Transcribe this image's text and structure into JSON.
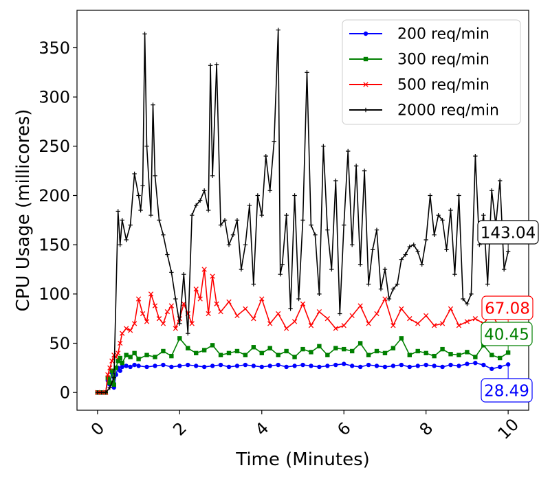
{
  "chart_data": {
    "type": "line",
    "title": "",
    "xlabel": "Time (Minutes)",
    "ylabel": "CPU Usage (millicores)",
    "xlim": [
      -0.5,
      10.5
    ],
    "ylim": [
      -18,
      388
    ],
    "xticks": [
      0,
      2,
      4,
      6,
      8,
      10
    ],
    "yticks": [
      0,
      50,
      100,
      150,
      200,
      250,
      300,
      350
    ],
    "grid": false,
    "legend_position": "top-right",
    "series": [
      {
        "name": "200 req/min",
        "color": "#0000ff",
        "marker": "circle",
        "x": [
          0,
          0.1,
          0.2,
          0.25,
          0.3,
          0.35,
          0.4,
          0.45,
          0.5,
          0.55,
          0.6,
          0.7,
          0.8,
          0.9,
          1.0,
          1.2,
          1.4,
          1.6,
          1.8,
          2.0,
          2.2,
          2.4,
          2.6,
          2.8,
          3.0,
          3.2,
          3.4,
          3.6,
          3.8,
          4.0,
          4.2,
          4.4,
          4.6,
          4.8,
          5.0,
          5.2,
          5.4,
          5.6,
          5.8,
          6.0,
          6.2,
          6.4,
          6.6,
          6.8,
          7.0,
          7.2,
          7.4,
          7.6,
          7.8,
          8.0,
          8.2,
          8.4,
          8.6,
          8.8,
          9.0,
          9.2,
          9.4,
          9.6,
          9.8,
          10.0
        ],
        "y": [
          0,
          0,
          0,
          12,
          8,
          20,
          5,
          18,
          25,
          22,
          26,
          27,
          26,
          28,
          27,
          26,
          27,
          28,
          26,
          27,
          28,
          27,
          26,
          27,
          28,
          26,
          27,
          28,
          27,
          26,
          27,
          28,
          26,
          27,
          28,
          27,
          26,
          27,
          28,
          29,
          27,
          26,
          28,
          27,
          26,
          27,
          28,
          26,
          27,
          28,
          27,
          26,
          28,
          27,
          29,
          30,
          28,
          24,
          26,
          28.49
        ]
      },
      {
        "name": "300 req/min",
        "color": "#008000",
        "marker": "square",
        "x": [
          0,
          0.1,
          0.2,
          0.25,
          0.3,
          0.35,
          0.4,
          0.45,
          0.5,
          0.55,
          0.6,
          0.7,
          0.8,
          0.9,
          1.0,
          1.2,
          1.4,
          1.6,
          1.8,
          2.0,
          2.2,
          2.4,
          2.6,
          2.8,
          3.0,
          3.2,
          3.4,
          3.6,
          3.8,
          4.0,
          4.2,
          4.4,
          4.6,
          4.8,
          5.0,
          5.2,
          5.4,
          5.6,
          5.8,
          6.0,
          6.2,
          6.4,
          6.6,
          6.8,
          7.0,
          7.2,
          7.4,
          7.6,
          7.8,
          8.0,
          8.2,
          8.4,
          8.6,
          8.8,
          9.0,
          9.2,
          9.4,
          9.6,
          9.8,
          10.0
        ],
        "y": [
          0,
          0,
          0,
          15,
          10,
          22,
          8,
          25,
          32,
          35,
          30,
          38,
          36,
          40,
          34,
          38,
          36,
          42,
          37,
          55,
          45,
          40,
          43,
          48,
          38,
          40,
          42,
          38,
          46,
          40,
          45,
          38,
          42,
          36,
          44,
          41,
          47,
          38,
          45,
          44,
          42,
          50,
          38,
          42,
          40,
          45,
          55,
          38,
          42,
          40,
          37,
          44,
          39,
          38,
          41,
          36,
          48,
          38,
          35,
          40.45
        ]
      },
      {
        "name": "500 req/min",
        "color": "#ff0000",
        "marker": "x",
        "x": [
          0,
          0.1,
          0.2,
          0.25,
          0.3,
          0.35,
          0.4,
          0.45,
          0.5,
          0.55,
          0.6,
          0.7,
          0.8,
          0.9,
          1.0,
          1.1,
          1.2,
          1.3,
          1.4,
          1.5,
          1.6,
          1.7,
          1.8,
          1.9,
          2.0,
          2.1,
          2.2,
          2.3,
          2.4,
          2.5,
          2.6,
          2.7,
          2.8,
          2.9,
          3.0,
          3.2,
          3.4,
          3.6,
          3.8,
          4.0,
          4.2,
          4.4,
          4.6,
          4.8,
          5.0,
          5.2,
          5.4,
          5.6,
          5.8,
          6.0,
          6.2,
          6.4,
          6.6,
          6.8,
          7.0,
          7.2,
          7.4,
          7.6,
          7.8,
          8.0,
          8.2,
          8.4,
          8.6,
          8.8,
          9.0,
          9.2,
          9.4,
          9.6,
          9.8,
          10.0
        ],
        "y": [
          0,
          0,
          0,
          18,
          25,
          32,
          38,
          36,
          40,
          50,
          60,
          65,
          63,
          70,
          95,
          80,
          72,
          100,
          88,
          75,
          70,
          82,
          88,
          65,
          75,
          90,
          80,
          70,
          105,
          95,
          125,
          80,
          118,
          90,
          82,
          92,
          78,
          85,
          75,
          95,
          70,
          80,
          65,
          72,
          90,
          68,
          82,
          75,
          65,
          68,
          78,
          88,
          70,
          80,
          95,
          68,
          85,
          75,
          70,
          78,
          68,
          70,
          85,
          68,
          72,
          75,
          70,
          80,
          65,
          67.08
        ]
      },
      {
        "name": "2000 req/min",
        "color": "#000000",
        "marker": "plus",
        "x": [
          0,
          0.1,
          0.2,
          0.3,
          0.4,
          0.5,
          0.55,
          0.6,
          0.7,
          0.8,
          0.9,
          1.0,
          1.05,
          1.1,
          1.15,
          1.2,
          1.3,
          1.35,
          1.4,
          1.5,
          1.6,
          1.7,
          1.8,
          1.9,
          2.0,
          2.1,
          2.2,
          2.3,
          2.4,
          2.5,
          2.6,
          2.7,
          2.75,
          2.8,
          2.9,
          3.0,
          3.1,
          3.2,
          3.3,
          3.4,
          3.5,
          3.6,
          3.7,
          3.8,
          3.9,
          4.0,
          4.1,
          4.2,
          4.3,
          4.4,
          4.45,
          4.5,
          4.6,
          4.7,
          4.8,
          4.9,
          5.0,
          5.1,
          5.2,
          5.3,
          5.4,
          5.5,
          5.6,
          5.7,
          5.8,
          5.9,
          6.0,
          6.1,
          6.2,
          6.3,
          6.4,
          6.5,
          6.6,
          6.7,
          6.8,
          6.9,
          7.0,
          7.1,
          7.2,
          7.3,
          7.4,
          7.5,
          7.6,
          7.7,
          7.8,
          7.9,
          8.0,
          8.1,
          8.2,
          8.3,
          8.4,
          8.5,
          8.6,
          8.7,
          8.8,
          8.9,
          9.0,
          9.1,
          9.2,
          9.3,
          9.4,
          9.5,
          9.6,
          9.7,
          9.8,
          9.9,
          10.0
        ],
        "y": [
          0,
          0,
          0,
          5,
          15,
          184,
          150,
          175,
          155,
          170,
          222,
          200,
          185,
          210,
          364,
          250,
          180,
          292,
          220,
          175,
          160,
          140,
          122,
          95,
          70,
          120,
          60,
          180,
          190,
          195,
          205,
          185,
          332,
          220,
          333,
          170,
          175,
          150,
          160,
          175,
          125,
          150,
          190,
          110,
          200,
          180,
          240,
          205,
          255,
          368,
          120,
          130,
          180,
          85,
          200,
          95,
          175,
          325,
          170,
          160,
          100,
          250,
          165,
          125,
          215,
          80,
          170,
          245,
          150,
          230,
          130,
          225,
          110,
          145,
          165,
          105,
          125,
          95,
          105,
          110,
          135,
          140,
          148,
          150,
          143,
          130,
          155,
          200,
          160,
          180,
          175,
          145,
          185,
          120,
          200,
          95,
          90,
          100,
          240,
          150,
          180,
          110,
          205,
          170,
          215,
          125,
          143.04
        ]
      }
    ],
    "annotations": [
      {
        "series": "2000 req/min",
        "text": "143.04",
        "color": "#000000"
      },
      {
        "series": "500 req/min",
        "text": "67.08",
        "color": "#ff0000"
      },
      {
        "series": "300 req/min",
        "text": "40.45",
        "color": "#008000"
      },
      {
        "series": "200 req/min",
        "text": "28.49",
        "color": "#0000ff"
      }
    ]
  }
}
